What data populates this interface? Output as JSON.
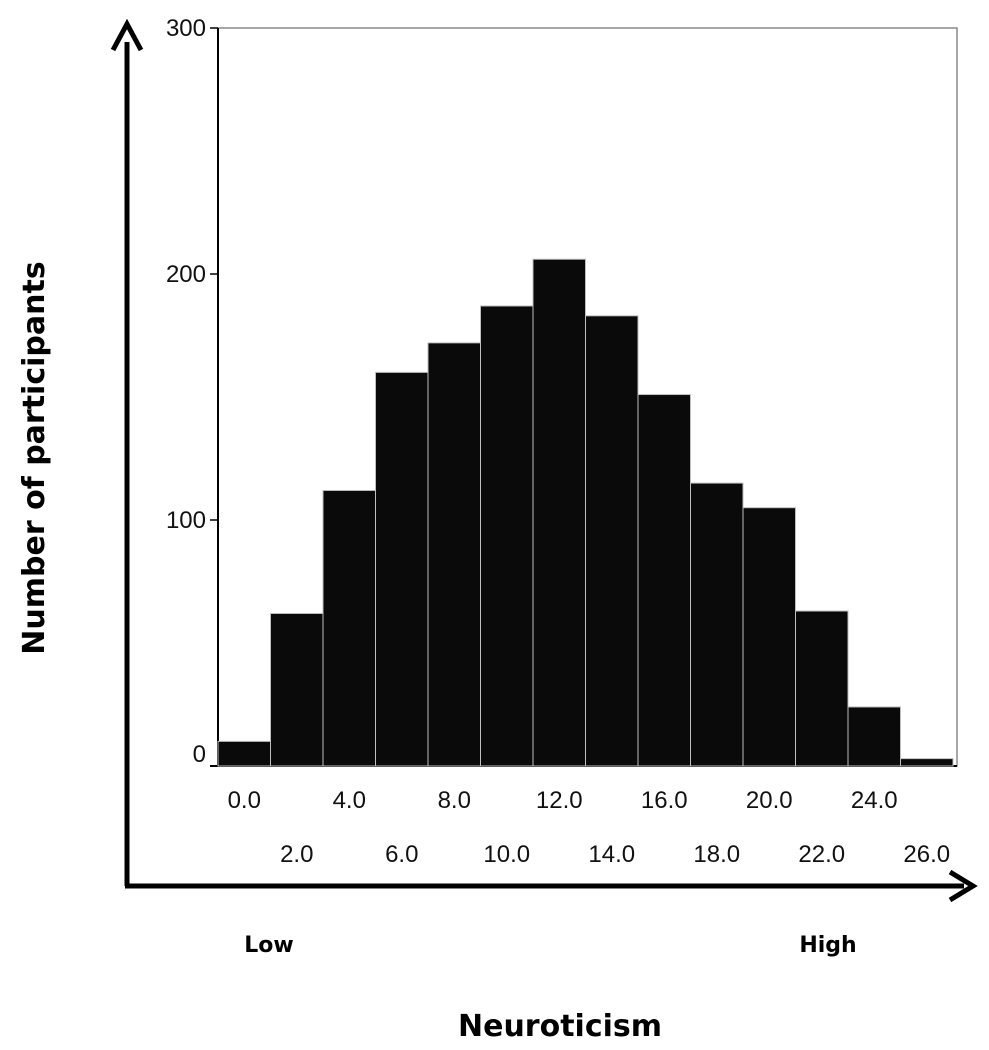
{
  "chart_data": {
    "type": "bar",
    "title": "",
    "xlabel": "Neuroticism",
    "ylabel": "Number of participants",
    "x_low_label": "Low",
    "x_high_label": "High",
    "categories": [
      "0.0",
      "2.0",
      "4.0",
      "6.0",
      "8.0",
      "10.0",
      "12.0",
      "14.0",
      "16.0",
      "18.0",
      "20.0",
      "22.0",
      "24.0",
      "26.0"
    ],
    "values": [
      10,
      62,
      112,
      160,
      172,
      187,
      206,
      183,
      151,
      115,
      105,
      63,
      24,
      3
    ],
    "y_ticks": [
      "0",
      "100",
      "200",
      "300"
    ],
    "ylim": [
      0,
      300
    ],
    "grid": false,
    "legend": "none",
    "bar_color": "#0a0a0a",
    "bar_edge_color": "#bfbfbf"
  }
}
